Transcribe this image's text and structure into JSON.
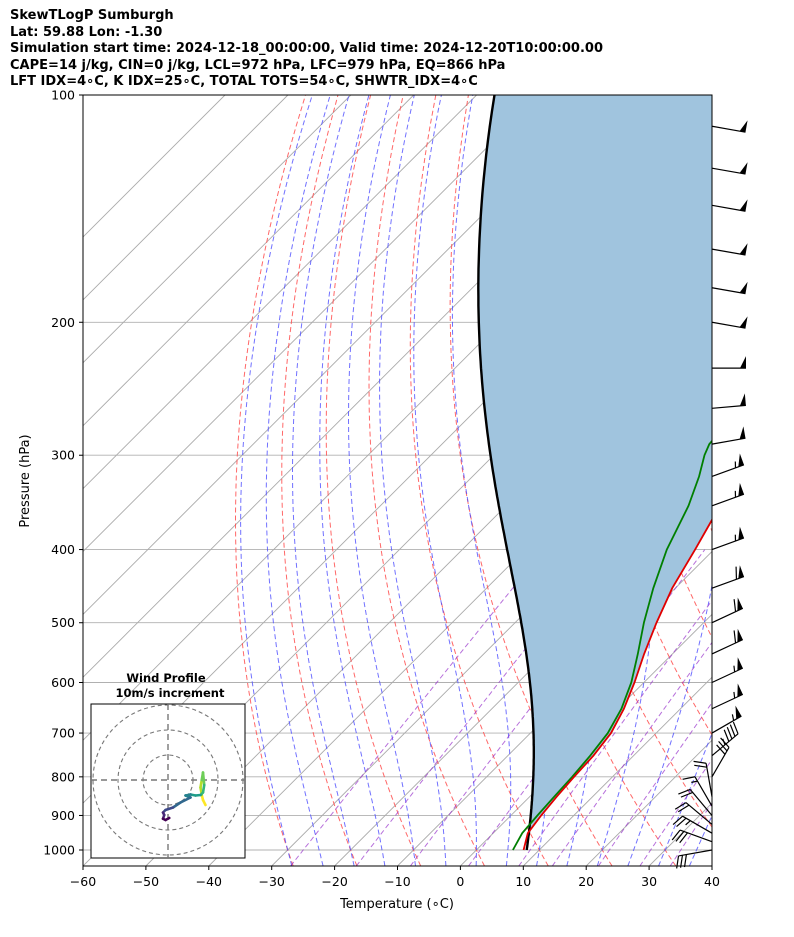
{
  "header": {
    "line1": "SkewTLogP Sumburgh",
    "line2": "Lat: 59.88   Lon: -1.30",
    "line3": "Simulation start time: 2024-12-18_00:00:00, Valid time: 2024-12-20T10:00:00.00",
    "line4": "CAPE=14 j/kg, CIN=0 j/kg, LCL=972 hPa, LFC=979 hPa, EQ=866 hPa",
    "line5": "LFT IDX=4∘C, K IDX=25∘C, TOTAL TOTS=54∘C, SHWTR_IDX=4∘C"
  },
  "chart_data": {
    "type": "skew-t",
    "xlabel": "Temperature (∘C)",
    "ylabel": "Pressure (hPa)",
    "xlim": [
      -60,
      40
    ],
    "ylim": [
      1050,
      100
    ],
    "x_ticks": [
      -60,
      -50,
      -40,
      -30,
      -20,
      -10,
      0,
      10,
      20,
      30,
      40
    ],
    "x_tick_labels": [
      "−60",
      "−50",
      "−40",
      "−30",
      "−20",
      "−10",
      "0",
      "10",
      "20",
      "30",
      "40"
    ],
    "y_ticks": [
      1000,
      900,
      800,
      700,
      600,
      500,
      400,
      300,
      200,
      100
    ],
    "skew_deg": 45,
    "temperature": [
      [
        1000,
        7.5
      ],
      [
        950,
        5.5
      ],
      [
        900,
        4.8
      ],
      [
        850,
        4.3
      ],
      [
        800,
        3.9
      ],
      [
        750,
        3.6
      ],
      [
        700,
        2.8
      ],
      [
        650,
        1.0
      ],
      [
        600,
        -1.5
      ],
      [
        550,
        -4.5
      ],
      [
        500,
        -7.5
      ],
      [
        450,
        -10.5
      ],
      [
        400,
        -13.0
      ],
      [
        350,
        -16.0
      ],
      [
        320,
        -18.5
      ],
      [
        300,
        -20.5
      ],
      [
        290,
        -21.5
      ],
      [
        275,
        -21.0
      ],
      [
        250,
        -19.0
      ],
      [
        230,
        -16.0
      ],
      [
        215,
        -10.0
      ],
      [
        200,
        -6.5
      ],
      [
        185,
        -4.0
      ],
      [
        170,
        -2.0
      ],
      [
        155,
        0.0
      ],
      [
        140,
        2.5
      ],
      [
        125,
        5.5
      ],
      [
        115,
        7.5
      ],
      [
        100,
        8.5
      ]
    ],
    "dewpoint": [
      [
        1000,
        5.8
      ],
      [
        950,
        4.6
      ],
      [
        900,
        4.2
      ],
      [
        850,
        3.9
      ],
      [
        800,
        3.6
      ],
      [
        750,
        3.1
      ],
      [
        700,
        2.3
      ],
      [
        650,
        0.6
      ],
      [
        600,
        -2.0
      ],
      [
        550,
        -5.5
      ],
      [
        500,
        -9.5
      ],
      [
        450,
        -13.5
      ],
      [
        400,
        -17.5
      ],
      [
        350,
        -21.0
      ],
      [
        320,
        -24.0
      ],
      [
        300,
        -26.5
      ],
      [
        290,
        -27.5
      ],
      [
        270,
        -28.0
      ],
      [
        250,
        -28.5
      ],
      [
        235,
        -30.0
      ],
      [
        220,
        -34.0
      ],
      [
        200,
        -38.0
      ],
      [
        180,
        -43.0
      ],
      [
        170,
        -45.0
      ],
      [
        150,
        -44.0
      ],
      [
        130,
        -42.0
      ],
      [
        115,
        -40.0
      ],
      [
        100,
        -37.0
      ]
    ],
    "parcel_surface": [
      1000,
      8.0
    ],
    "cape_fill": "#a0c4de",
    "temperature_color": "#e00000",
    "dewpoint_color": "#007f00",
    "parcel_color": "#000000",
    "dry_adiabat_color": "#ff4d4d",
    "moist_adiabat_color": "#4d4dff",
    "mixing_ratio_color": "#9933cc",
    "isotherm_color": "#aaaaaa",
    "wind_barbs": [
      [
        1000,
        80,
        28
      ],
      [
        975,
        110,
        28
      ],
      [
        950,
        120,
        25
      ],
      [
        925,
        130,
        22
      ],
      [
        900,
        140,
        18
      ],
      [
        875,
        150,
        17
      ],
      [
        850,
        170,
        18
      ],
      [
        800,
        210,
        30
      ],
      [
        750,
        230,
        45
      ],
      [
        700,
        240,
        55
      ],
      [
        650,
        245,
        55
      ],
      [
        600,
        245,
        55
      ],
      [
        550,
        245,
        58
      ],
      [
        500,
        245,
        60
      ],
      [
        450,
        250,
        58
      ],
      [
        400,
        250,
        55
      ],
      [
        350,
        250,
        55
      ],
      [
        320,
        250,
        55
      ],
      [
        290,
        260,
        50
      ],
      [
        260,
        265,
        50
      ],
      [
        230,
        270,
        50
      ],
      [
        200,
        280,
        50
      ],
      [
        180,
        280,
        50
      ],
      [
        160,
        280,
        50
      ],
      [
        140,
        280,
        50
      ],
      [
        125,
        280,
        50
      ],
      [
        110,
        280,
        50
      ]
    ],
    "hodograph": {
      "title_line1": "Wind Profile",
      "title_line2": "10m/s increment",
      "rings_ms": [
        10,
        20,
        30
      ],
      "points_uv": [
        [
          15,
          10
        ],
        [
          14,
          8
        ],
        [
          13.5,
          6
        ],
        [
          13,
          3
        ],
        [
          13.5,
          0
        ],
        [
          14,
          -3
        ],
        [
          14.5,
          2
        ],
        [
          14,
          5
        ],
        [
          13,
          6
        ],
        [
          11,
          6.2
        ],
        [
          9,
          5.8
        ],
        [
          7,
          6.2
        ],
        [
          9,
          7
        ],
        [
          5,
          9
        ],
        [
          2,
          11
        ],
        [
          -1,
          12
        ],
        [
          -2,
          13
        ],
        [
          -1.5,
          14
        ],
        [
          -2,
          15.5
        ],
        [
          -1,
          16
        ],
        [
          0.5,
          15.2
        ]
      ]
    }
  }
}
